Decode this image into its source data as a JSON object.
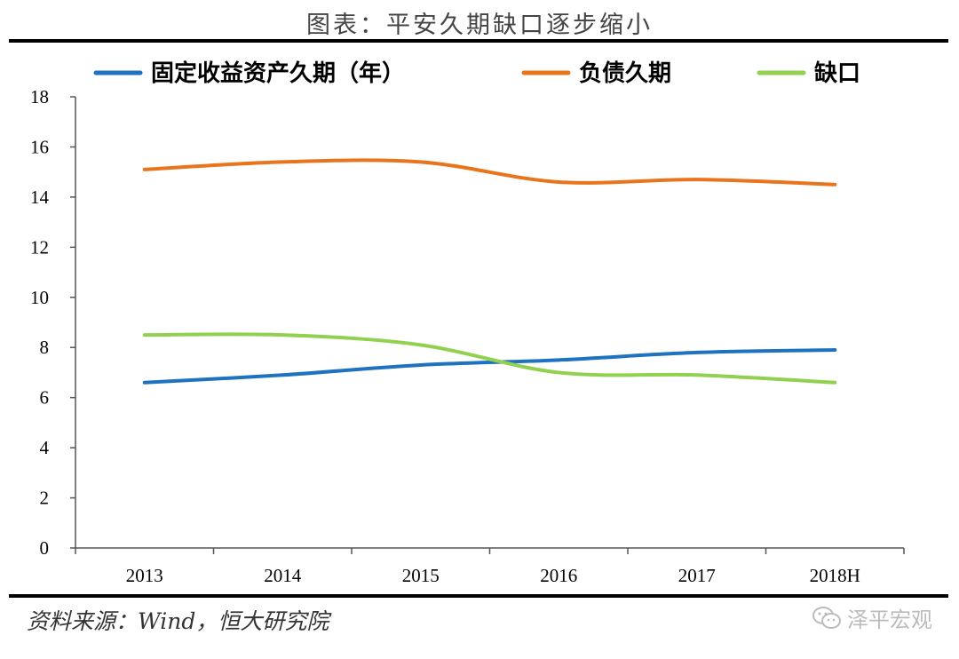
{
  "header": {
    "title": "图表：平安久期缺口逐步缩小"
  },
  "footer": {
    "source": "资料来源：Wind，恒大研究院",
    "watermark": "泽平宏观"
  },
  "chart_data": {
    "type": "line",
    "title": "图表：平安久期缺口逐步缩小",
    "categories": [
      "2013",
      "2014",
      "2015",
      "2016",
      "2017",
      "2018H"
    ],
    "series": [
      {
        "name": "固定收益资产久期（年）",
        "color": "#1f72c0",
        "values": [
          6.6,
          6.9,
          7.3,
          7.5,
          7.8,
          7.9
        ]
      },
      {
        "name": "负债久期",
        "color": "#e8741c",
        "values": [
          15.1,
          15.4,
          15.4,
          14.6,
          14.7,
          14.5
        ]
      },
      {
        "name": "缺口",
        "color": "#92d050",
        "values": [
          8.5,
          8.5,
          8.1,
          7.0,
          6.9,
          6.6
        ]
      }
    ],
    "ylim": [
      0,
      18
    ],
    "yticks": [
      0,
      2,
      4,
      6,
      8,
      10,
      12,
      14,
      16,
      18
    ],
    "xlabel": "",
    "ylabel": "",
    "grid": false,
    "legend_position": "top"
  }
}
